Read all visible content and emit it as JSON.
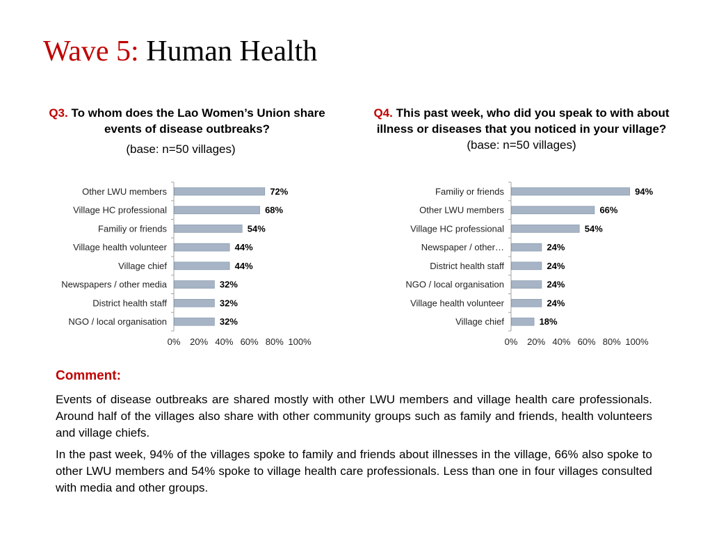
{
  "title": {
    "accent": "Wave 5:",
    "main": "Human Health"
  },
  "q3": {
    "number": "Q3.",
    "text": "To whom does the Lao Women’s Union share events of disease outbreaks?",
    "base": "(base: n=50 villages)"
  },
  "q4": {
    "number": "Q4.",
    "text": "This past week, who did you speak to with about illness or diseases that you noticed in your village?",
    "base": "(base: n=50 villages)"
  },
  "comment": {
    "heading": "Comment:",
    "paragraphs": [
      "Events of disease outbreaks are shared mostly with other LWU members and village health care professionals. Around half of the villages also share with other community groups such as family and friends, health volunteers and village chiefs.",
      "In the past week, 94% of the villages spoke to family and friends about illnesses in the village, 66% also spoke to other LWU members and 54% spoke to village health care professionals. Less than one in four villages consulted with media and other groups."
    ]
  },
  "colors": {
    "accent": "#c00000",
    "bar": "#a6b4c6",
    "bar_edge": "#7f8fa3",
    "axis": "#a0a0a0"
  },
  "chart_data": [
    {
      "type": "bar",
      "orientation": "horizontal",
      "categories": [
        "Other LWU members",
        "Village HC professional",
        "Familiy or friends",
        "Village health volunteer",
        "Village chief",
        "Newspapers / other media",
        "District health staff",
        "NGO / local organisation"
      ],
      "values": [
        72,
        68,
        54,
        44,
        44,
        32,
        32,
        32
      ],
      "data_labels": [
        "72%",
        "68%",
        "54%",
        "44%",
        "44%",
        "32%",
        "32%",
        "32%"
      ],
      "xlim": [
        0,
        100
      ],
      "xticks": [
        "0%",
        "20%",
        "40%",
        "60%",
        "80%",
        "100%"
      ],
      "grid": false,
      "legend": false
    },
    {
      "type": "bar",
      "orientation": "horizontal",
      "categories": [
        "Familiy or friends",
        "Other LWU members",
        "Village HC professional",
        "Newspaper / other…",
        "District health staff",
        "NGO / local organisation",
        "Village health volunteer",
        "Village chief"
      ],
      "values": [
        94,
        66,
        54,
        24,
        24,
        24,
        24,
        18
      ],
      "data_labels": [
        "94%",
        "66%",
        "54%",
        "24%",
        "24%",
        "24%",
        "24%",
        "18%"
      ],
      "xlim": [
        0,
        100
      ],
      "xticks": [
        "0%",
        "20%",
        "40%",
        "60%",
        "80%",
        "100%"
      ],
      "grid": false,
      "legend": false
    }
  ]
}
